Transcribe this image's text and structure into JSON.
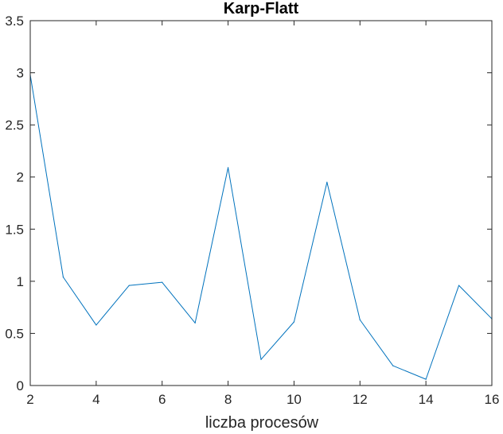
{
  "chart_data": {
    "type": "line",
    "title": "Karp-Flatt",
    "xlabel": "liczba procesów",
    "ylabel": "",
    "x": [
      2,
      3,
      4,
      5,
      6,
      7,
      8,
      9,
      10,
      11,
      12,
      13,
      14,
      15,
      16
    ],
    "series": [
      {
        "values": [
          2.98,
          1.04,
          0.58,
          0.96,
          0.99,
          0.6,
          2.09,
          0.25,
          0.61,
          1.95,
          0.63,
          0.19,
          0.06,
          0.96,
          0.64
        ]
      }
    ],
    "xlim": [
      2,
      16
    ],
    "ylim": [
      0,
      3.5
    ],
    "xticks": [
      2,
      4,
      6,
      8,
      10,
      12,
      14,
      16
    ],
    "yticks": [
      0,
      0.5,
      1,
      1.5,
      2,
      2.5,
      3,
      3.5
    ],
    "xtick_labels": [
      "2",
      "4",
      "6",
      "8",
      "10",
      "12",
      "14",
      "16"
    ],
    "ytick_labels": [
      "0",
      "0.5",
      "1",
      "1.5",
      "2",
      "2.5",
      "3",
      "3.5"
    ],
    "grid": false,
    "legend": "none",
    "colors": {
      "line": "#0072BD",
      "axes": "#262626"
    }
  }
}
